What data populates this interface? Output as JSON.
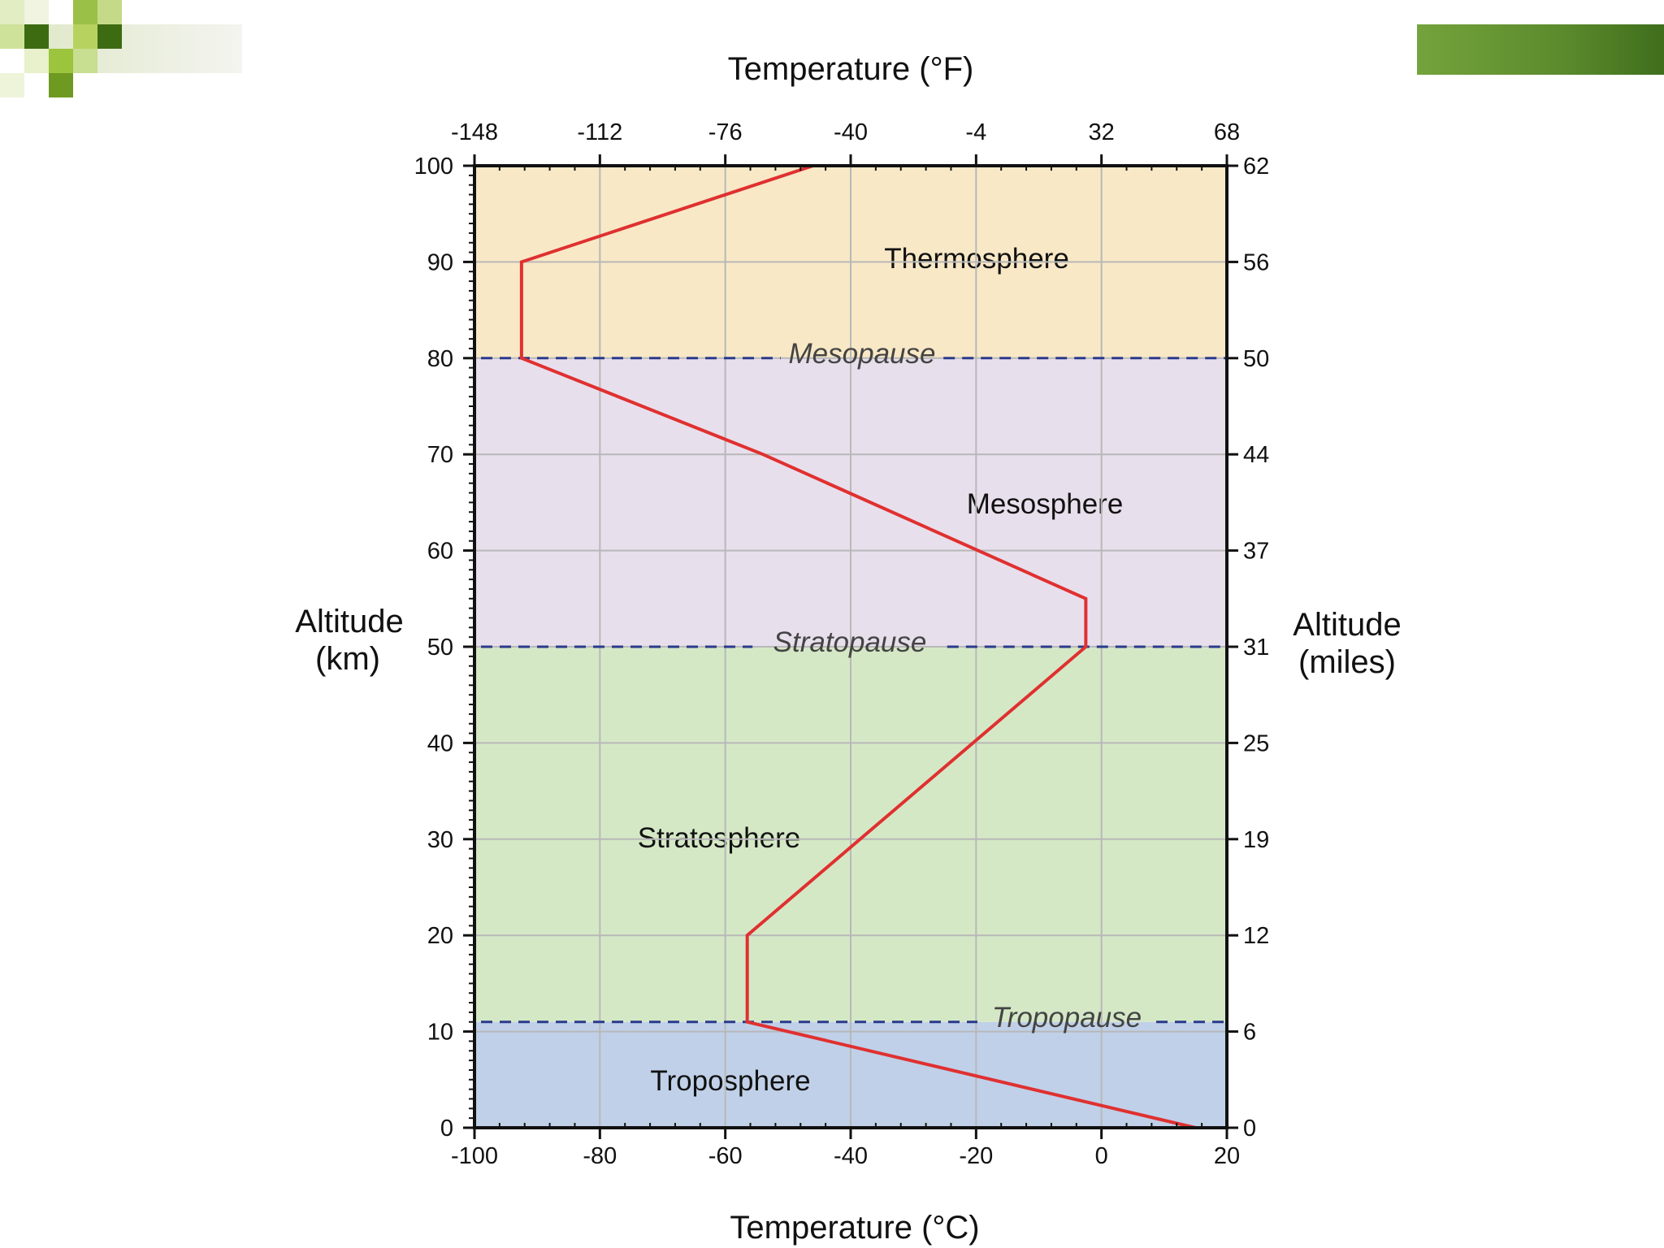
{
  "slide": {
    "accent_color": "#5a8a2c"
  },
  "chart_data": {
    "type": "line",
    "xlabel_bottom": "Temperature (°C)",
    "xlabel_top": "Temperature (°F)",
    "ylabel_left_line1": "Altitude",
    "ylabel_left_line2": "(km)",
    "ylabel_right_line1": "Altitude",
    "ylabel_right_line2": "(miles)",
    "xlim": [
      -100,
      20
    ],
    "ylim": [
      0,
      100
    ],
    "x_ticks_bottom": [
      "-100",
      "-80",
      "-60",
      "-40",
      "-20",
      "0",
      "20"
    ],
    "x_ticks_top": [
      "-148",
      "-112",
      "-76",
      "-40",
      "-4",
      "32",
      "68"
    ],
    "y_ticks_left": [
      "0",
      "10",
      "20",
      "30",
      "40",
      "50",
      "60",
      "70",
      "80",
      "90",
      "100"
    ],
    "y_ticks_right": [
      "0",
      "6",
      "12",
      "19",
      "25",
      "31",
      "37",
      "44",
      "50",
      "56",
      "62"
    ],
    "grid": true,
    "series": [
      {
        "color": "#e03030",
        "points": [
          [
            15,
            0
          ],
          [
            -56.5,
            11
          ],
          [
            -56.5,
            20
          ],
          [
            -2.5,
            50
          ],
          [
            -2.5,
            55
          ],
          [
            -54,
            70
          ],
          [
            -92.5,
            80
          ],
          [
            -92.5,
            90
          ],
          [
            -46,
            100
          ]
        ]
      }
    ],
    "layers": [
      {
        "name": "Troposphere",
        "from": 0,
        "to": 11,
        "color": "#c0d0e8"
      },
      {
        "name": "Stratosphere",
        "from": 11,
        "to": 50,
        "color": "#d5e8c6"
      },
      {
        "name": "Mesosphere",
        "from": 50,
        "to": 80,
        "color": "#e8dfec"
      },
      {
        "name": "Thermosphere",
        "from": 80,
        "to": 100,
        "color": "#f8e8c6"
      }
    ],
    "boundaries": [
      {
        "label": "Tropopause",
        "altitude": 11
      },
      {
        "label": "Stratopause",
        "altitude": 50
      },
      {
        "label": "Mesopause",
        "altitude": 80
      }
    ],
    "boundary_color": "#2a3a8c"
  }
}
